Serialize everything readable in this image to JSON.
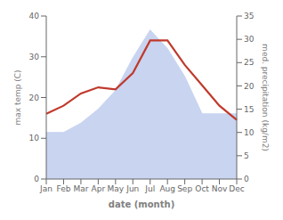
{
  "chart_data": {
    "type": "line",
    "xlabel": "date (month)",
    "ylabel": "max temp (C)",
    "y2label": "med. precipitation (kg/m2)",
    "categories": [
      "Jan",
      "Feb",
      "Mar",
      "Apr",
      "May",
      "Jun",
      "Jul",
      "Aug",
      "Sep",
      "Oct",
      "Nov",
      "Dec"
    ],
    "series": [
      {
        "type": "area",
        "axis": "y2",
        "color": "#c8d4f0",
        "values": [
          10,
          10,
          12,
          15,
          19,
          26,
          32,
          28,
          22,
          14,
          14,
          14
        ]
      },
      {
        "type": "line",
        "color": "#c0392b",
        "values": [
          16,
          18,
          21,
          22.5,
          22,
          26,
          34,
          34,
          28,
          23,
          18,
          14.5
        ]
      }
    ],
    "ylim": [
      0,
      40
    ],
    "yticks": [
      0,
      10,
      20,
      30,
      40
    ],
    "y2lim": [
      0,
      35
    ],
    "y2ticks": [
      0,
      5,
      10,
      15,
      20,
      25,
      30,
      35
    ],
    "grid": false
  }
}
